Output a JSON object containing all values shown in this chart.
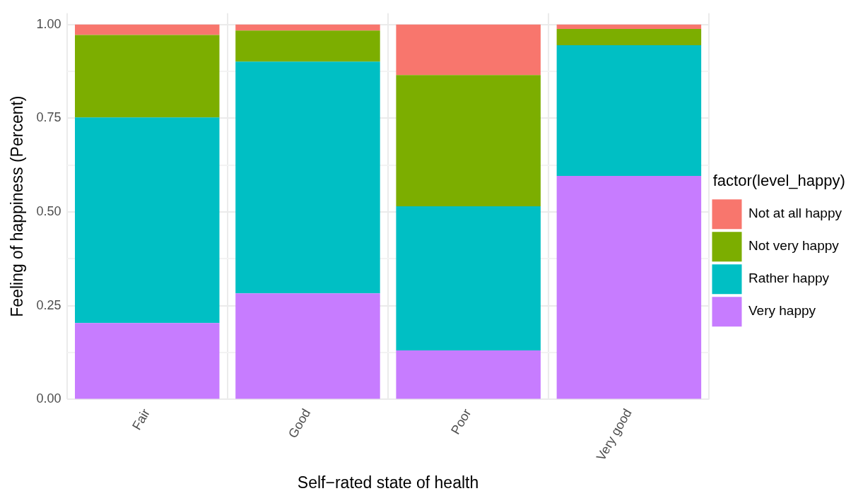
{
  "chart_data": {
    "type": "bar",
    "stacked": true,
    "xlabel": "Self−rated state of health",
    "ylabel": "Feeling of happiness (Percent)",
    "legend_title": "factor(level_happy)",
    "legend": "right",
    "grid": true,
    "categories": [
      "Fair",
      "Good",
      "Poor",
      "Very good"
    ],
    "ylim": [
      0,
      1.03
    ],
    "yticks": [
      {
        "value": 0,
        "label": "0.00"
      },
      {
        "value": 0.125,
        "label": null
      },
      {
        "value": 0.25,
        "label": "0.25"
      },
      {
        "value": 0.375,
        "label": null
      },
      {
        "value": 0.5,
        "label": "0.50"
      },
      {
        "value": 0.625,
        "label": null
      },
      {
        "value": 0.75,
        "label": "0.75"
      },
      {
        "value": 0.875,
        "label": null
      },
      {
        "value": 1,
        "label": "1.00"
      }
    ],
    "series": [
      {
        "name": "Very happy",
        "color": "#c77cff",
        "values": [
          0.204,
          0.283,
          0.131,
          0.596
        ]
      },
      {
        "name": "Rather happy",
        "color": "#00bfc4",
        "values": [
          0.548,
          0.618,
          0.384,
          0.349
        ]
      },
      {
        "name": "Not very happy",
        "color": "#7cae00",
        "values": [
          0.22,
          0.083,
          0.35,
          0.043
        ]
      },
      {
        "name": "Not at all happy",
        "color": "#f8766d",
        "values": [
          0.028,
          0.016,
          0.135,
          0.012
        ]
      }
    ]
  }
}
